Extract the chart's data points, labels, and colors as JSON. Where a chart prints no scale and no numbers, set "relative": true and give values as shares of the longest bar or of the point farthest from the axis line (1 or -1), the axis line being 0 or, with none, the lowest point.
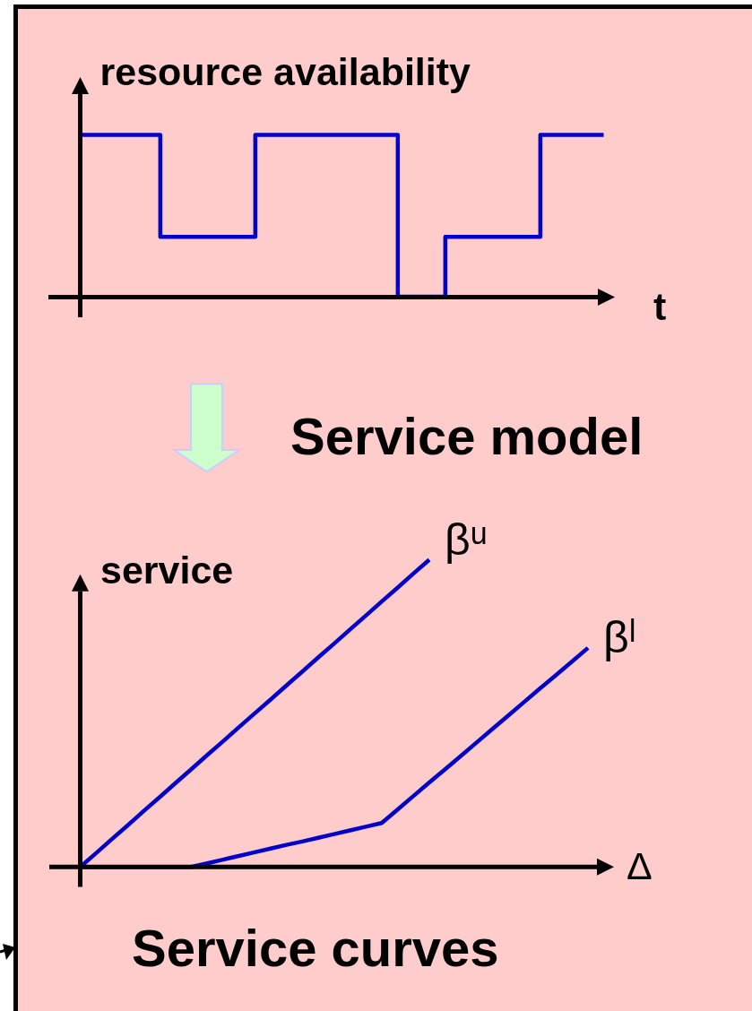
{
  "chart_data": [
    {
      "type": "step",
      "xlabel": "t",
      "ylabel": "resource availability",
      "relative": true,
      "categories": [
        null,
        null,
        null,
        null,
        null,
        null,
        null,
        null,
        null,
        null,
        null,
        null,
        null,
        null,
        null,
        null,
        null,
        null,
        null,
        null,
        null,
        null,
        null,
        null,
        null,
        null,
        null,
        null,
        null,
        null,
        null,
        null,
        null,
        null
      ],
      "series": [
        {
          "color": "#0000cc",
          "values": [
            1,
            1,
            1,
            1,
            1,
            0.37,
            0.37,
            0.37,
            0.37,
            0.37,
            0.37,
            1,
            1,
            1,
            1,
            1,
            1,
            1,
            1,
            1,
            0,
            0,
            0,
            0.37,
            0.37,
            0.37,
            0.37,
            0.37,
            0.37,
            1,
            1,
            1,
            1,
            1
          ]
        }
      ]
    },
    {
      "type": "line",
      "xlabel": "Δ",
      "ylabel": "service",
      "relative": true,
      "annotations": [
        "Service model",
        "Service curves"
      ],
      "categories": [
        null,
        null,
        null,
        null,
        null,
        null,
        null,
        null,
        null,
        null,
        null,
        null,
        null,
        null,
        null,
        null,
        null,
        null,
        null,
        null,
        null,
        null,
        null,
        null,
        null,
        null,
        null,
        null,
        null,
        null,
        null,
        null,
        null
      ],
      "series": [
        {
          "name": "βᵘ",
          "color": "#0000cc",
          "values": [
            0,
            0.045,
            0.091,
            0.136,
            0.182,
            0.227,
            0.273,
            0.318,
            0.364,
            0.409,
            0.455,
            0.5,
            0.545,
            0.591,
            0.636,
            0.682,
            0.727,
            0.773,
            0.818,
            0.864,
            0.909,
            0.955,
            1,
            null,
            null,
            null,
            null,
            null,
            null,
            null,
            null,
            null,
            null
          ]
        },
        {
          "name": "βˡ",
          "color": "#0000cc",
          "values": [
            0,
            0,
            0,
            0,
            0,
            0,
            0,
            0,
            0.012,
            0.024,
            0.036,
            0.048,
            0.06,
            0.072,
            0.083,
            0.095,
            0.107,
            0.119,
            0.131,
            0.143,
            0.187,
            0.231,
            0.275,
            0.318,
            0.362,
            0.406,
            0.45,
            0.494,
            0.538,
            0.582,
            0.625,
            0.669,
            0.713
          ]
        }
      ]
    }
  ]
}
